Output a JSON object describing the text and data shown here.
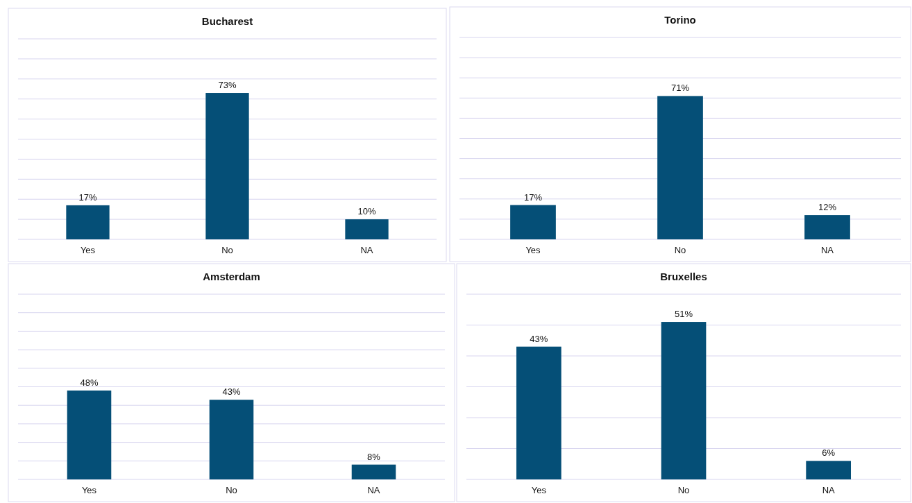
{
  "chart_data": [
    {
      "type": "bar",
      "title": "Bucharest",
      "categories": [
        "Yes",
        "No",
        "NA"
      ],
      "values": [
        17,
        73,
        10
      ],
      "color": "#054f77",
      "ylim": [
        0,
        100
      ],
      "yticks": [
        {
          "value": 0,
          "label": null
        },
        {
          "value": 10,
          "label": null
        },
        {
          "value": 20,
          "label": null
        },
        {
          "value": 30,
          "label": null
        },
        {
          "value": 40,
          "label": null
        },
        {
          "value": 50,
          "label": null
        },
        {
          "value": 60,
          "label": null
        },
        {
          "value": 70,
          "label": null
        },
        {
          "value": 80,
          "label": null
        },
        {
          "value": 90,
          "label": null
        },
        {
          "value": 100,
          "label": null
        }
      ],
      "grid": "y",
      "tick_labels": "x",
      "value_labels": [
        "17%",
        "73%",
        "10%"
      ]
    },
    {
      "type": "bar",
      "title": "Torino",
      "categories": [
        "Yes",
        "No",
        "NA"
      ],
      "values": [
        17,
        71,
        12
      ],
      "color": "#054f77",
      "ylim": [
        0,
        100
      ],
      "yticks": [
        {
          "value": 0,
          "label": null
        },
        {
          "value": 10,
          "label": null
        },
        {
          "value": 20,
          "label": null
        },
        {
          "value": 30,
          "label": null
        },
        {
          "value": 40,
          "label": null
        },
        {
          "value": 50,
          "label": null
        },
        {
          "value": 60,
          "label": null
        },
        {
          "value": 70,
          "label": null
        },
        {
          "value": 80,
          "label": null
        },
        {
          "value": 90,
          "label": null
        },
        {
          "value": 100,
          "label": null
        }
      ],
      "grid": "y",
      "tick_labels": "x",
      "value_labels": [
        "17%",
        "71%",
        "12%"
      ]
    },
    {
      "type": "bar",
      "title": "Amsterdam",
      "categories": [
        "Yes",
        "No",
        "NA"
      ],
      "values": [
        48,
        43,
        8
      ],
      "color": "#054f77",
      "ylim": [
        0,
        100
      ],
      "yticks": [
        {
          "value": 0,
          "label": null
        },
        {
          "value": 10,
          "label": null
        },
        {
          "value": 20,
          "label": null
        },
        {
          "value": 30,
          "label": null
        },
        {
          "value": 40,
          "label": null
        },
        {
          "value": 50,
          "label": null
        },
        {
          "value": 60,
          "label": null
        },
        {
          "value": 70,
          "label": null
        },
        {
          "value": 80,
          "label": null
        },
        {
          "value": 90,
          "label": null
        },
        {
          "value": 100,
          "label": null
        }
      ],
      "grid": "y",
      "tick_labels": "x",
      "value_labels": [
        "48%",
        "43%",
        "8%"
      ]
    },
    {
      "type": "bar",
      "title": "Bruxelles",
      "categories": [
        "Yes",
        "No",
        "NA"
      ],
      "values": [
        43,
        51,
        6
      ],
      "color": "#054f77",
      "ylim": [
        0,
        60
      ],
      "yticks": [
        {
          "value": 0,
          "label": null
        },
        {
          "value": 10,
          "label": null
        },
        {
          "value": 20,
          "label": null
        },
        {
          "value": 30,
          "label": null
        },
        {
          "value": 40,
          "label": null
        },
        {
          "value": 50,
          "label": null
        },
        {
          "value": 60,
          "label": null
        }
      ],
      "grid": "y",
      "tick_labels": "x",
      "value_labels": [
        "43%",
        "51%",
        "6%"
      ]
    }
  ]
}
